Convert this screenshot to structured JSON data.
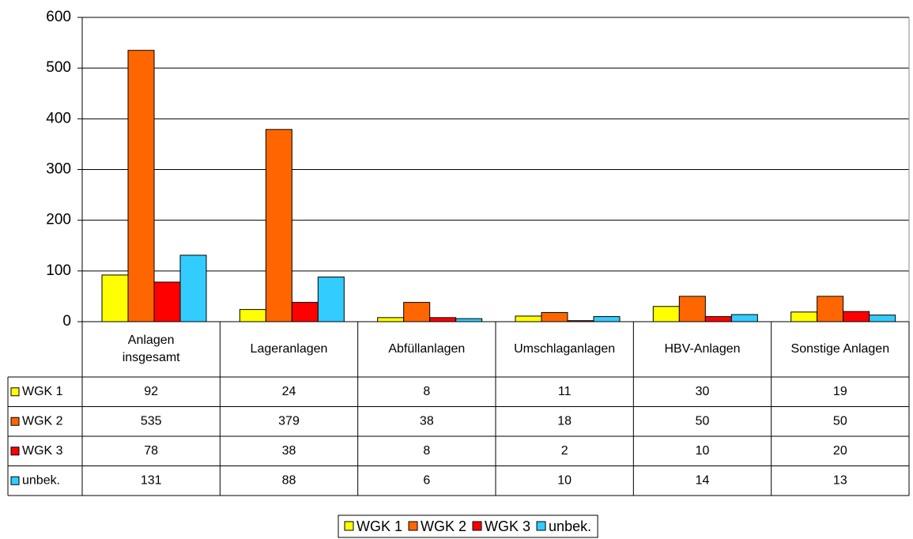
{
  "chart_data": {
    "type": "bar",
    "categories": [
      "Anlagen insgesamt",
      "Lageranlagen",
      "Abfüllanlagen",
      "Umschlaganlagen",
      "HBV-Anlagen",
      "Sonstige Anlagen"
    ],
    "series": [
      {
        "name": "WGK 1",
        "color": "#ffff00",
        "values": [
          92,
          24,
          8,
          11,
          30,
          19
        ]
      },
      {
        "name": "WGK 2",
        "color": "#ff6600",
        "values": [
          535,
          379,
          38,
          18,
          50,
          50
        ]
      },
      {
        "name": "WGK 3",
        "color": "#ff0000",
        "values": [
          78,
          38,
          8,
          2,
          10,
          20
        ]
      },
      {
        "name": "unbek.",
        "color": "#33ccff",
        "values": [
          131,
          88,
          6,
          10,
          14,
          13
        ]
      }
    ],
    "ylim": [
      0,
      600
    ],
    "yticks": [
      0,
      100,
      200,
      300,
      400,
      500,
      600
    ],
    "grid": true,
    "legend": "bottom"
  }
}
